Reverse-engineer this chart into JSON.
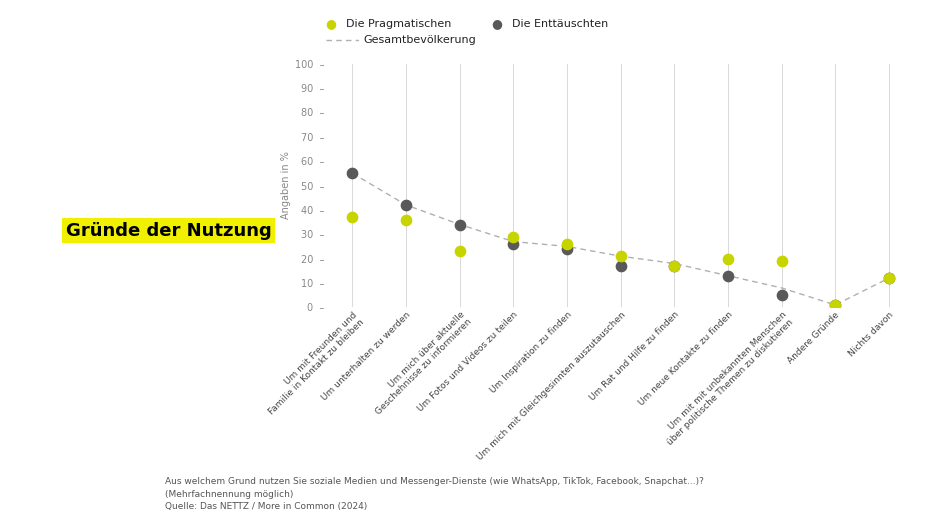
{
  "categories": [
    "Um mit Freunden und\nFamilie in Kontakt zu bleiben",
    "Um unterhalten zu werden",
    "Um mich über aktuelle\nGeschehnisse zu informieren",
    "Um Fotos und Videos zu teilen",
    "Um Inspiration zu finden",
    "Um mich mit Gleichgesinnten auszutauschen",
    "Um Rat und Hilfe zu finden",
    "Um neue Kontakte zu finden",
    "Um mit mit unbekannten Menschen\nüber politische Themen zu diskutieren",
    "Andere Gründe",
    "Nichts davon"
  ],
  "pragmatische": [
    37,
    36,
    23,
    29,
    26,
    21,
    17,
    20,
    19,
    1,
    12
  ],
  "enttaeuschte": [
    55,
    42,
    34,
    26,
    24,
    17,
    17,
    13,
    5,
    1,
    12
  ],
  "gesamtbevoelkerung": [
    55,
    42,
    34,
    27,
    25,
    21,
    18,
    13,
    8,
    1,
    12
  ],
  "color_pragmatische": "#c8d400",
  "color_enttaeuschte": "#595959",
  "color_gesamtbevoelkerung": "#b0b0b0",
  "ylabel": "Angaben in %",
  "legend_pragmatische": "Die Pragmatischen",
  "legend_enttaeuschte": "Die Enttäuschten",
  "legend_gesamtbevoelkerung": "Gesamtbevölkerung",
  "title_label": "Gründe der Nutzung",
  "footnote_line1": "Aus welchem Grund nutzen Sie soziale Medien und Messenger-Dienste (wie WhatsApp, TikTok, Facebook, Snapchat...)?",
  "footnote_line2": "(Mehrfachnennung möglich)",
  "footnote_line3": "Quelle: Das NETTZ / More in Common (2024)",
  "ylim": [
    0,
    100
  ],
  "yticks": [
    0,
    10,
    20,
    30,
    40,
    50,
    60,
    70,
    80,
    90,
    100
  ]
}
